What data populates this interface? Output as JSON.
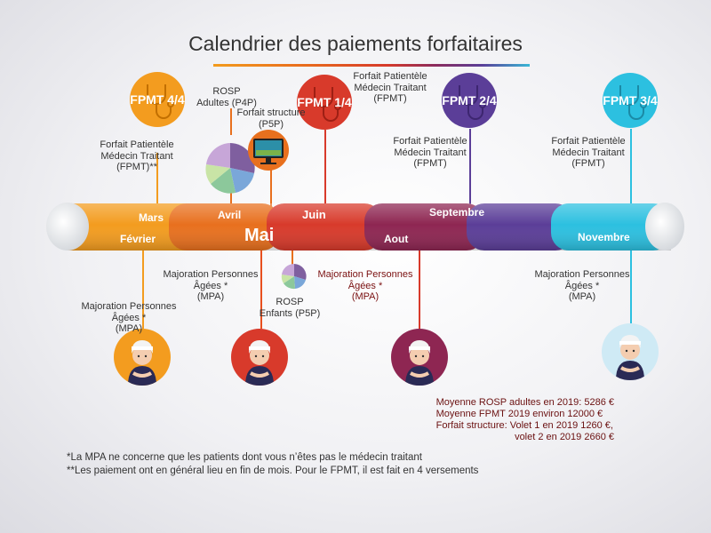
{
  "title": "Calendrier des paiements forfaitaires",
  "badges": {
    "fpmt_4_4": "FPMT 4/4",
    "fpmt_1_4": "FPMT 1/4",
    "fpmt_2_4": "FPMT 2/4",
    "fpmt_3_4": "FPMT 3/4"
  },
  "months": {
    "mars": "Mars",
    "fevrier": "Février",
    "avril": "Avril",
    "mai": "Mai",
    "juin": "Juin",
    "aout": "Aout",
    "septembre": "Septembre",
    "novembre": "Novembre"
  },
  "labels": {
    "fpmt_left": [
      "Forfait Patientèle",
      "Médecin Traitant",
      "(FPMT)**"
    ],
    "rosp_adultes": [
      "ROSP",
      "Adultes (P4P)"
    ],
    "forfait_structure": [
      "Forfait structure",
      "(P5P)"
    ],
    "fpmt_top": [
      "Forfait Patientèle",
      "Médecin Traitant",
      "(FPMT)"
    ],
    "fpmt_sept": [
      "Forfait Patientèle",
      "Médecin Traitant",
      "(FPMT)"
    ],
    "fpmt_nov": [
      "Forfait Patientèle",
      "Médecin Traitant",
      "(FPMT)"
    ],
    "mpa_fevrier": [
      "Majoration Personnes",
      "Âgées *",
      "(MPA)"
    ],
    "mpa_mai": [
      "Majoration Personnes",
      "Âgées *",
      "(MPA)"
    ],
    "mpa_aout": [
      "Majoration Personnes",
      "Âgées *",
      "(MPA)"
    ],
    "mpa_nov": [
      "Majoration Personnes",
      "Âgées *",
      "(MPA)"
    ],
    "rosp_enfants": [
      "ROSP",
      "Enfants (P5P)"
    ]
  },
  "stats": [
    "Moyenne ROSP adultes en 2019: 5286 €",
    "Moyenne FPMT 2019 environ 12000 €",
    "Forfait structure: Volet 1 en 2019 1260 €,",
    "volet 2 en 2019 2660 €"
  ],
  "footnotes": [
    "*La MPA ne concerne que les patients dont vous n’êtes pas le médecin traitant",
    "**Les paiement ont en général lieu en fin de mois. Pour le FPMT, il est fait en 4 versements"
  ],
  "colors": {
    "orange": "#f39c1f",
    "dark_orange": "#e8701e",
    "red": "#d83a2b",
    "burgundy": "#8e2652",
    "purple": "#5b3e98",
    "cyan": "#2cc0e0"
  },
  "icons": [
    "stethoscope-icon",
    "pie-chart-icon",
    "monitor-icon",
    "elderly-person-icon"
  ]
}
